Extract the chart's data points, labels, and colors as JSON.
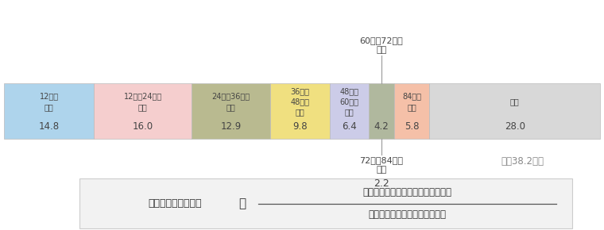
{
  "bars": [
    {
      "label": "12万円\n未満",
      "value": 14.8,
      "color": "#aed4ec"
    },
    {
      "label": "12万～24万円\n未満",
      "value": 16.0,
      "color": "#f5cece"
    },
    {
      "label": "24万～36万円\n未満",
      "value": 12.9,
      "color": "#b9ba90"
    },
    {
      "label": "36万～\n48万円\n未満",
      "value": 9.8,
      "color": "#f0e080"
    },
    {
      "label": "48万～\n60万円\n未満",
      "value": 6.4,
      "color": "#cccce8"
    },
    {
      "label": "",
      "value": 4.2,
      "color": "#b0b89e"
    },
    {
      "label": "84万円\n以上",
      "value": 5.8,
      "color": "#f5c0a8"
    },
    {
      "label": "不明",
      "value": 28.0,
      "color": "#d8d8d8"
    }
  ],
  "above_label": "60万～72万円\n未満",
  "below_label": "72万～84万円\n未満",
  "below_value": "2.2",
  "avg_text": "平均38.2万円",
  "formula_left": "世帯年間払込保険料",
  "formula_eq": "＝",
  "formula_top": "全世帯員の年間払込保険料の総合計",
  "formula_bottom": "生命保険に加入している世帯数",
  "bg_color": "#ffffff"
}
